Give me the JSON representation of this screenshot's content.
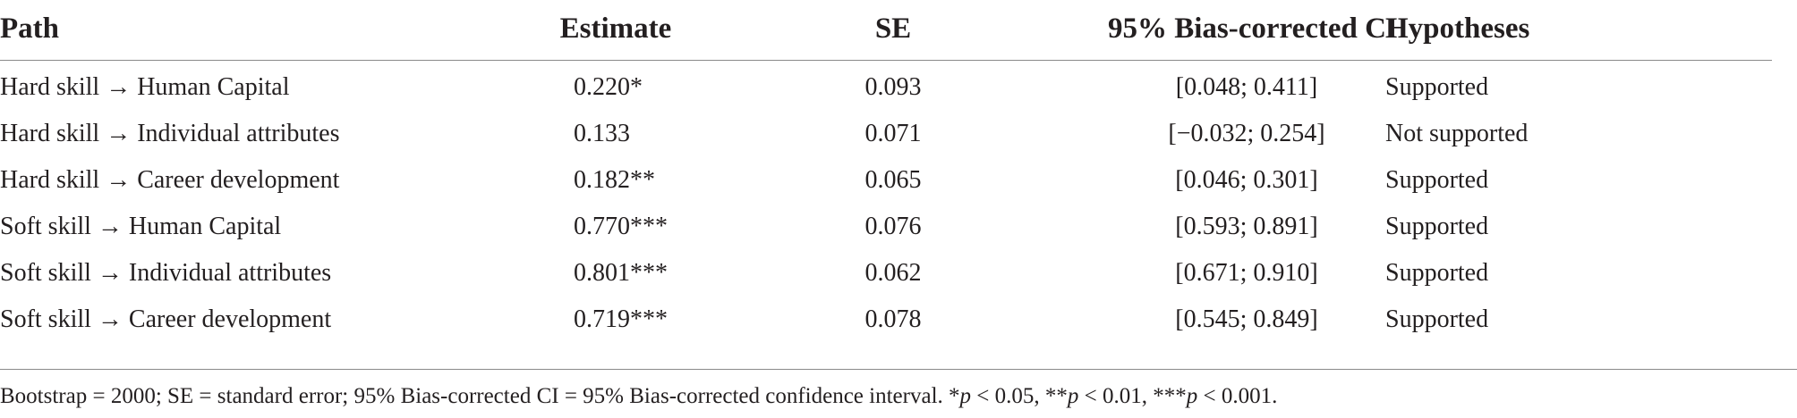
{
  "headers": {
    "path": "Path",
    "estimate": "Estimate",
    "se": "SE",
    "ci": "95% Bias-corrected CI",
    "hypotheses": "Hypotheses"
  },
  "rows": [
    {
      "path": "Hard skill → Human Capital",
      "estimate": "0.220*",
      "se": "0.093",
      "ci": "[0.048; 0.411]",
      "hypothesis": "Supported"
    },
    {
      "path": "Hard skill → Individual attributes",
      "estimate": "0.133",
      "se": "0.071",
      "ci": "[−0.032; 0.254]",
      "hypothesis": "Not supported"
    },
    {
      "path": "Hard skill → Career development",
      "estimate": "0.182**",
      "se": "0.065",
      "ci": "[0.046; 0.301]",
      "hypothesis": "Supported"
    },
    {
      "path": "Soft skill → Human Capital",
      "estimate": "0.770***",
      "se": "0.076",
      "ci": "[0.593; 0.891]",
      "hypothesis": "Supported"
    },
    {
      "path": "Soft skill → Individual attributes",
      "estimate": "0.801***",
      "se": "0.062",
      "ci": "[0.671; 0.910]",
      "hypothesis": "Supported"
    },
    {
      "path": "Soft skill → Career development",
      "estimate": "0.719***",
      "se": "0.078",
      "ci": "[0.545; 0.849]",
      "hypothesis": "Supported"
    }
  ],
  "footnote": {
    "lead": "Bootstrap = 2000; SE = standard error; 95% Bias-corrected CI = 95% Bias-corrected confidence interval. *",
    "p1": "p",
    "t1": " < 0.05, **",
    "p2": "p",
    "t2": " < 0.01, ***",
    "p3": "p",
    "t3": " < 0.001."
  }
}
